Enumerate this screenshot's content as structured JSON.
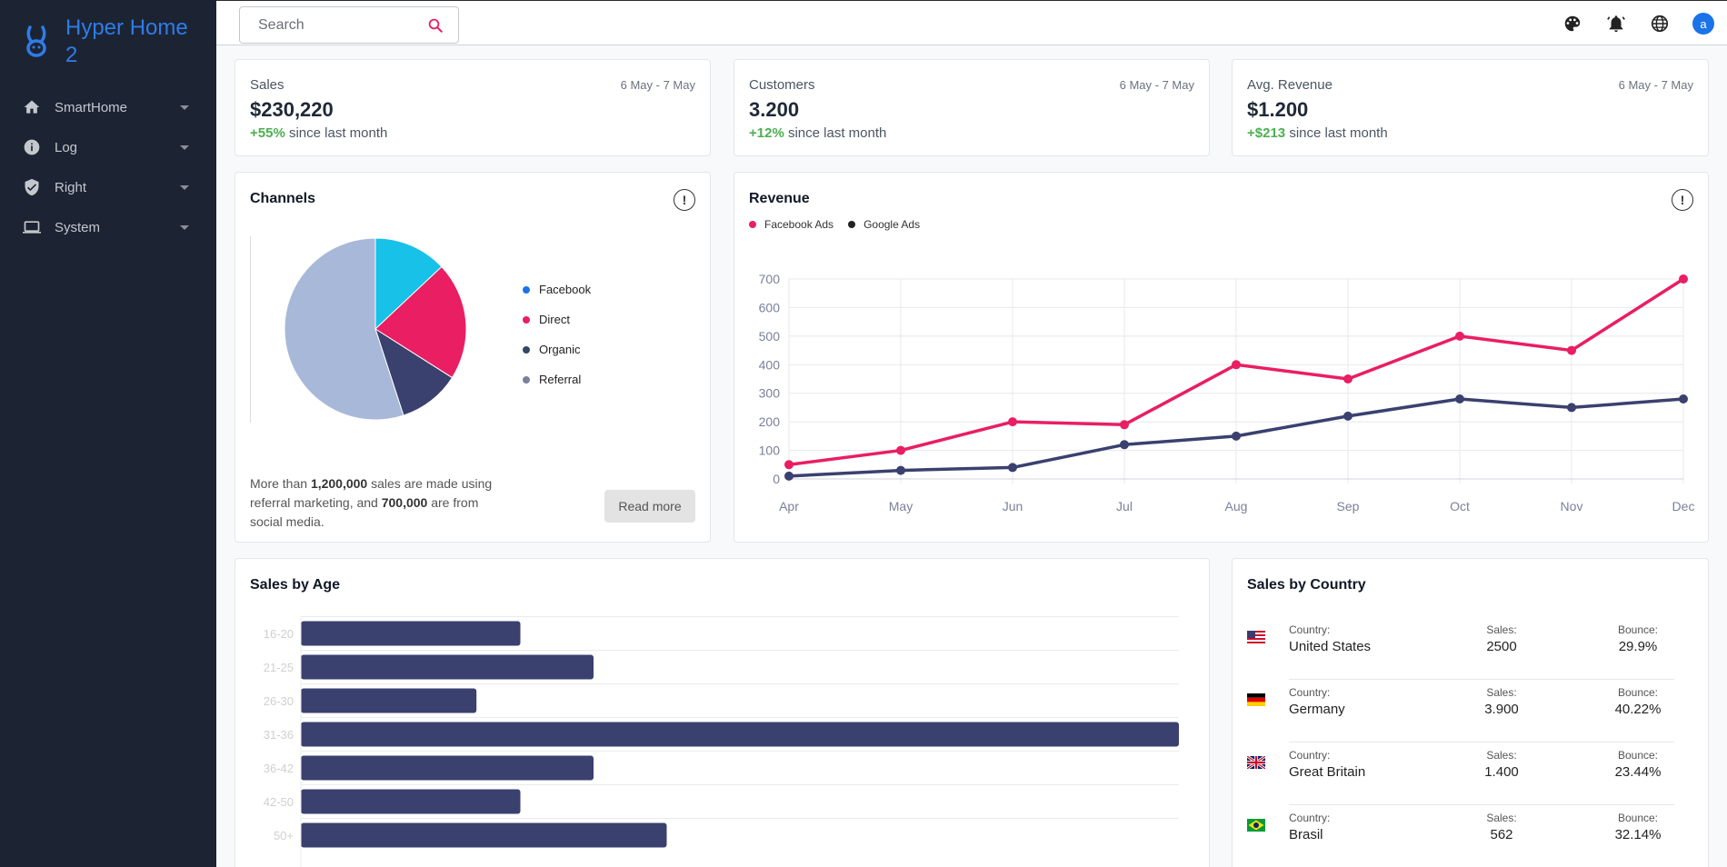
{
  "brand": {
    "name": "Hyper Home 2"
  },
  "sidebar": {
    "items": [
      {
        "label": "SmartHome",
        "icon": "home-icon"
      },
      {
        "label": "Log",
        "icon": "info-icon"
      },
      {
        "label": "Right",
        "icon": "shield-icon"
      },
      {
        "label": "System",
        "icon": "laptop-icon"
      }
    ]
  },
  "topbar": {
    "search_placeholder": "Search",
    "icons": [
      "palette-icon",
      "bell-icon",
      "globe-icon"
    ],
    "avatar_letter": "a"
  },
  "stats": [
    {
      "title": "Sales",
      "date": "6 May - 7 May",
      "value": "$230,220",
      "change": "+55%",
      "change_text": "since last month"
    },
    {
      "title": "Customers",
      "date": "6 May - 7 May",
      "value": "3.200",
      "change": "+12%",
      "change_text": "since last month"
    },
    {
      "title": "Avg. Revenue",
      "date": "6 May - 7 May",
      "value": "$1.200",
      "change": "+$213",
      "change_text": "since last month"
    }
  ],
  "channels": {
    "title": "Channels",
    "info": "!",
    "text_pre": "More than ",
    "text_bold1": "1,200,000",
    "text_mid": " sales are made using referral marketing, and ",
    "text_bold2": "700,000",
    "text_post": " are from social media.",
    "read_more": "Read more"
  },
  "revenue": {
    "title": "Revenue",
    "info": "!"
  },
  "sales_by_age": {
    "title": "Sales by Age"
  },
  "sales_by_country": {
    "title": "Sales by Country",
    "label_country": "Country:",
    "label_sales": "Sales:",
    "label_bounce": "Bounce:",
    "rows": [
      {
        "flag": "us-flag-icon",
        "country": "United States",
        "sales": "2500",
        "bounce": "29.9%"
      },
      {
        "flag": "de-flag-icon",
        "country": "Germany",
        "sales": "3.900",
        "bounce": "40.22%"
      },
      {
        "flag": "gb-flag-icon",
        "country": "Great Britain",
        "sales": "1.400",
        "bounce": "23.44%"
      },
      {
        "flag": "br-flag-icon",
        "country": "Brasil",
        "sales": "562",
        "bounce": "32.14%"
      }
    ]
  },
  "chart_data": [
    {
      "type": "pie",
      "title": "Channels",
      "categories": [
        "Facebook",
        "Direct",
        "Organic",
        "Referral"
      ],
      "values": [
        13,
        21,
        11,
        55
      ],
      "slice_colors": [
        "#17c1e8",
        "#ea1e63",
        "#3a416f",
        "#a8b8d8"
      ],
      "legend_colors": [
        "#1a73e8",
        "#e91e63",
        "#344767",
        "#7b809a"
      ],
      "legend": "right"
    },
    {
      "type": "line",
      "title": "Revenue",
      "categories": [
        "Apr",
        "May",
        "Jun",
        "Jul",
        "Aug",
        "Sep",
        "Oct",
        "Nov",
        "Dec"
      ],
      "series": [
        {
          "name": "Facebook Ads",
          "color": "#e91e63",
          "values": [
            50,
            100,
            200,
            190,
            400,
            350,
            500,
            450,
            700
          ]
        },
        {
          "name": "Google Ads",
          "color": "#3a416f",
          "values": [
            10,
            30,
            40,
            120,
            150,
            220,
            280,
            250,
            280
          ]
        }
      ],
      "ylim": [
        0,
        700
      ],
      "yticks": [
        0,
        100,
        200,
        300,
        400,
        500,
        600,
        700
      ],
      "grid": true,
      "legend": "top-left"
    },
    {
      "type": "bar",
      "orientation": "horizontal",
      "title": "Sales by Age",
      "categories": [
        "16-20",
        "21-25",
        "26-30",
        "31-36",
        "36-42",
        "42-50",
        "50+"
      ],
      "values": [
        15,
        20,
        12,
        60,
        20,
        15,
        25
      ],
      "xlim": [
        0,
        60
      ],
      "color": "#3a416f",
      "grid": true
    }
  ]
}
